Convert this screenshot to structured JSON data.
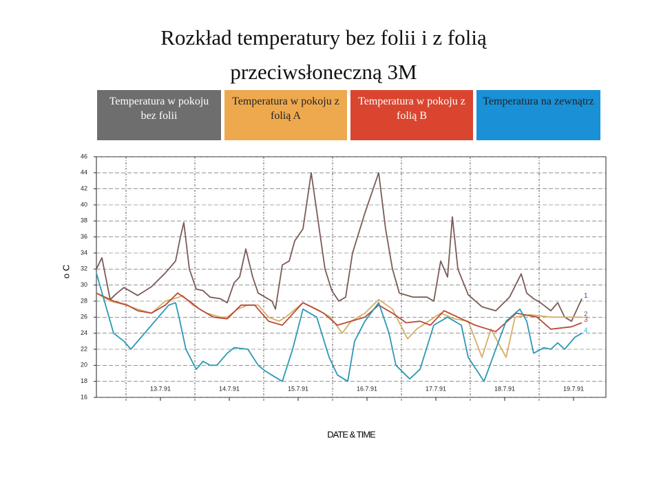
{
  "chart_data": {
    "type": "line",
    "title": "Rozkład temperatury bez folii i z folią przeciwsłoneczną 3M",
    "xlabel": "DATE & TIME",
    "ylabel": "o C",
    "xlim": [
      12.57,
      19.97
    ],
    "ylim": [
      16,
      46
    ],
    "xticks": [
      {
        "value": 13.5,
        "label": "13.7.91"
      },
      {
        "value": 14.5,
        "label": "14.7.91"
      },
      {
        "value": 15.5,
        "label": "15.7.91"
      },
      {
        "value": 16.5,
        "label": "16.7.91"
      },
      {
        "value": 17.5,
        "label": "17.7.91"
      },
      {
        "value": 18.5,
        "label": "18.7.91"
      },
      {
        "value": 19.5,
        "label": "19.7.91"
      }
    ],
    "yticks": [
      16,
      18,
      20,
      22,
      24,
      26,
      28,
      30,
      32,
      34,
      36,
      38,
      40,
      42,
      44,
      46
    ],
    "grid": true,
    "series": [
      {
        "name": "Temperatura w pokoju bez folii",
        "label": "1",
        "color": "#7a5a55",
        "legend_color": "#6e6e6e",
        "label_color": "#3a3aa8",
        "x": [
          12.57,
          12.65,
          12.77,
          12.87,
          12.97,
          13.17,
          13.37,
          13.57,
          13.72,
          13.79,
          13.84,
          13.92,
          14.02,
          14.12,
          14.22,
          14.37,
          14.47,
          14.57,
          14.65,
          14.74,
          14.84,
          14.92,
          15.02,
          15.12,
          15.17,
          15.27,
          15.37,
          15.45,
          15.57,
          15.69,
          15.79,
          15.89,
          15.99,
          16.09,
          16.19,
          16.29,
          16.47,
          16.67,
          16.77,
          16.87,
          16.97,
          17.17,
          17.37,
          17.47,
          17.57,
          17.67,
          17.74,
          17.82,
          17.97,
          18.17,
          18.37,
          18.57,
          18.74,
          18.82,
          18.92,
          19.02,
          19.17,
          19.27,
          19.37,
          19.47,
          19.62
        ],
        "values": [
          32,
          33.4,
          28.2,
          29,
          29.7,
          28.7,
          29.8,
          31.5,
          33,
          36,
          37.8,
          32,
          29.5,
          29.3,
          28.5,
          28.3,
          27.8,
          30.3,
          31,
          34.5,
          31,
          29,
          28.5,
          28,
          27,
          32.5,
          33,
          35.5,
          37,
          44,
          38,
          32,
          29.3,
          28,
          28.5,
          34,
          39,
          44,
          37,
          32,
          29,
          28.5,
          28.5,
          28,
          33,
          31,
          38.5,
          32,
          28.8,
          27.3,
          26.8,
          28.5,
          31.4,
          29,
          28.3,
          27.8,
          26.8,
          27.8,
          26,
          25.5,
          28.3
        ]
      },
      {
        "name": "Temperatura w pokoju z folią A",
        "label": "2",
        "color": "#d6ae62",
        "legend_color": "#eea94e",
        "label_color": "#666666",
        "x": [
          12.57,
          12.77,
          13,
          13.17,
          13.37,
          13.57,
          13.77,
          13.82,
          13.97,
          14.17,
          14.37,
          14.47,
          14.62,
          14.77,
          14.92,
          15.07,
          15.22,
          15.32,
          15.57,
          15.77,
          15.97,
          16.14,
          16.27,
          16.47,
          16.67,
          16.87,
          17.09,
          17.22,
          17.57,
          17.77,
          17.97,
          18.17,
          18.3,
          18.52,
          18.65,
          18.87,
          19.17,
          19.62
        ],
        "values": [
          29,
          28,
          27.5,
          27,
          26.5,
          28,
          28.5,
          28.7,
          27.5,
          26.5,
          26,
          26,
          27,
          27.5,
          27.5,
          26,
          25.5,
          26,
          27.8,
          27,
          26,
          24,
          25.5,
          26.5,
          28.2,
          27,
          23.3,
          24.5,
          26.5,
          25.8,
          25.5,
          21,
          24.5,
          21,
          26,
          26.3,
          26,
          26
        ]
      },
      {
        "name": "Temperatura w pokoju z folią B",
        "label": "3",
        "color": "#b84a3a",
        "legend_color": "#d9452f",
        "label_color": "#c0392b",
        "x": [
          12.57,
          12.82,
          13.02,
          13.17,
          13.37,
          13.57,
          13.75,
          13.92,
          14.07,
          14.27,
          14.47,
          14.67,
          14.87,
          15.07,
          15.27,
          15.57,
          15.87,
          16.07,
          16.27,
          16.47,
          16.67,
          16.87,
          17.07,
          17.27,
          17.42,
          17.62,
          17.82,
          18.07,
          18.37,
          18.67,
          18.97,
          19.17,
          19.47,
          19.62
        ],
        "values": [
          29,
          28,
          27.5,
          26.8,
          26.5,
          27.5,
          29,
          28,
          27,
          26,
          25.8,
          27.5,
          27.5,
          25.5,
          25,
          27.8,
          26.5,
          25,
          25.5,
          26,
          27.5,
          26.5,
          25.3,
          25.5,
          25,
          26.8,
          26,
          25,
          24.2,
          26.5,
          26,
          24.5,
          24.8,
          25.3
        ]
      },
      {
        "name": "Temperatura na zewnątrz",
        "label": "4",
        "color": "#2a98b5",
        "legend_color": "#1a90d6",
        "label_color": "#20b8d8",
        "x": [
          12.57,
          12.72,
          12.82,
          12.97,
          13.07,
          13.22,
          13.42,
          13.62,
          13.72,
          13.77,
          13.87,
          14.02,
          14.12,
          14.22,
          14.32,
          14.47,
          14.57,
          14.77,
          14.92,
          15.02,
          15.17,
          15.27,
          15.42,
          15.57,
          15.77,
          15.95,
          16.07,
          16.22,
          16.32,
          16.47,
          16.67,
          16.82,
          16.92,
          17.12,
          17.27,
          17.47,
          17.67,
          17.87,
          17.97,
          18.2,
          18.37,
          18.52,
          18.72,
          18.82,
          18.92,
          19.07,
          19.17,
          19.27,
          19.37,
          19.52,
          19.62
        ],
        "values": [
          31.5,
          27,
          24,
          23,
          22,
          23.5,
          25.5,
          27.5,
          27.8,
          26,
          22,
          19.5,
          20.5,
          20,
          20,
          21.5,
          22.2,
          22,
          20,
          19.3,
          18.5,
          18,
          22,
          27,
          26,
          21,
          18.8,
          18,
          23,
          25.5,
          27.8,
          24,
          20,
          18.3,
          19.5,
          25,
          26,
          25,
          21,
          18,
          22,
          25.5,
          27,
          25.5,
          21.5,
          22.2,
          22,
          22.8,
          22,
          23.5,
          24
        ]
      }
    ]
  }
}
